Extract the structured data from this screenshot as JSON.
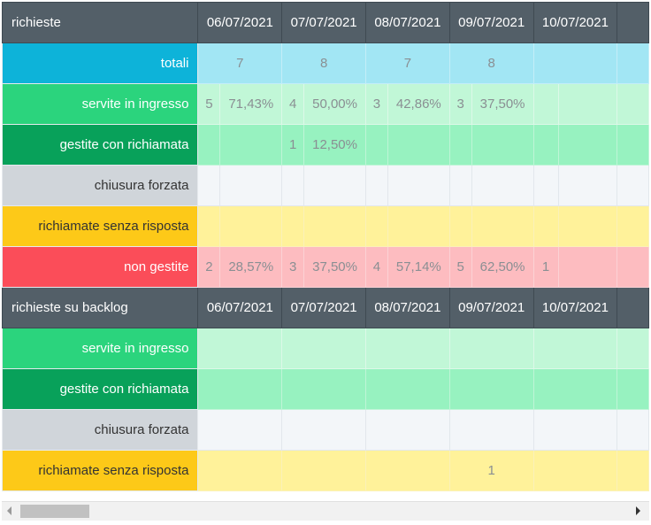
{
  "dates": [
    "06/07/2021",
    "07/07/2021",
    "08/07/2021",
    "09/07/2021",
    "10/07/2021"
  ],
  "section1": {
    "title": "richieste",
    "totali": {
      "label": "totali",
      "values": [
        "7",
        "8",
        "7",
        "8",
        ""
      ]
    },
    "servite": {
      "label": "servite in ingresso",
      "counts": [
        "5",
        "4",
        "3",
        "3",
        ""
      ],
      "percents": [
        "71,43%",
        "50,00%",
        "42,86%",
        "37,50%",
        ""
      ]
    },
    "gestite": {
      "label": "gestite con richiamata",
      "counts": [
        "",
        "1",
        "",
        "",
        ""
      ],
      "percents": [
        "",
        "12,50%",
        "",
        "",
        ""
      ]
    },
    "chiusura": {
      "label": "chiusura forzata",
      "counts": [
        "",
        "",
        "",
        "",
        ""
      ],
      "percents": [
        "",
        "",
        "",
        "",
        ""
      ]
    },
    "richiamate": {
      "label": "richiamate senza risposta",
      "counts": [
        "",
        "",
        "",
        "",
        ""
      ],
      "percents": [
        "",
        "",
        "",
        "",
        ""
      ]
    },
    "non_gestite": {
      "label": "non gestite",
      "counts": [
        "2",
        "3",
        "4",
        "5",
        "1"
      ],
      "percents": [
        "28,57%",
        "37,50%",
        "57,14%",
        "62,50%",
        ""
      ]
    }
  },
  "section2": {
    "title": "richieste su backlog",
    "servite": {
      "label": "servite in ingresso",
      "values": [
        "",
        "",
        "",
        "",
        ""
      ]
    },
    "gestite": {
      "label": "gestite con richiamata",
      "values": [
        "",
        "",
        "",
        "",
        ""
      ]
    },
    "chiusura": {
      "label": "chiusura forzata",
      "values": [
        "",
        "",
        "",
        "",
        ""
      ]
    },
    "richiamate": {
      "label": "richiamate senza risposta",
      "values": [
        "",
        "",
        "",
        "1",
        ""
      ]
    }
  },
  "colors": {
    "header": "#535f68",
    "totali": "#0db3d9",
    "servite": "#2bd47d",
    "gestite": "#08a15a",
    "chiusura": "#d0d5da",
    "richiamate": "#fdc918",
    "non_gestite": "#fb4d59"
  },
  "icons": {
    "scroll_left": "chevron-left-icon",
    "scroll_right": "chevron-right-icon"
  }
}
